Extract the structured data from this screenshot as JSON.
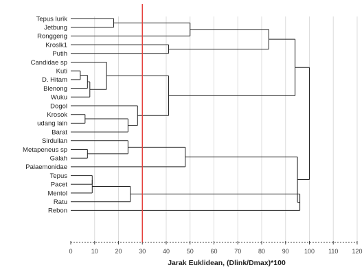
{
  "chart_data": {
    "type": "dendrogram",
    "xlabel": "Jarak Euklidean, (Dlink/Dmax)*100",
    "xlim": [
      0,
      120
    ],
    "x_ticks": [
      0,
      10,
      20,
      30,
      40,
      50,
      60,
      70,
      80,
      90,
      100,
      110,
      120
    ],
    "grid": true,
    "cutoff_line": {
      "x": 30,
      "color": "#e53935"
    },
    "leaves": [
      "Tepus lurik",
      "Jetbung",
      "Ronggeng",
      "Kroslk1",
      "Putih",
      "Candidae sp",
      "Kuti",
      "D. Hitam",
      "Blenong",
      "Wuku",
      "Dogol",
      "Krosok",
      "udang lain",
      "Barat",
      "Sirdullan",
      "Metapeneus sp",
      "Galah",
      "Palaemonidae",
      "Tepus",
      "Pacet",
      "Mentol",
      "Ratu",
      "Rebon"
    ],
    "merges": [
      {
        "a": "Tepus lurik",
        "b": "Jetbung",
        "height": 18
      },
      {
        "a": "Kuti",
        "b": "D. Hitam",
        "height": 4
      },
      {
        "a": "Krosok",
        "b": "udang lain",
        "height": 6
      },
      {
        "a": "Sirdullan",
        "b": "Metapeneus sp",
        "height": 24
      },
      {
        "a": "Metapeneus sp",
        "b": "Galah",
        "height": 7
      },
      {
        "a": "Tepus",
        "b": "Pacet",
        "height": 9
      }
    ]
  },
  "colors": {
    "link": "#222222",
    "cutoff": "#e53935",
    "grid": "#dcdcdc"
  }
}
